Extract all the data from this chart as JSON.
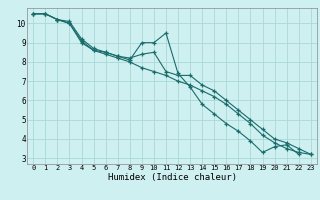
{
  "background_color": "#cff0f0",
  "grid_color": "#aad8d8",
  "line_color": "#1a6b6b",
  "xlabel": "Humidex (Indice chaleur)",
  "xlim": [
    -0.5,
    23.5
  ],
  "ylim": [
    2.7,
    10.8
  ],
  "yticks": [
    3,
    4,
    5,
    6,
    7,
    8,
    9,
    10
  ],
  "xticks": [
    0,
    1,
    2,
    3,
    4,
    5,
    6,
    7,
    8,
    9,
    10,
    11,
    12,
    13,
    14,
    15,
    16,
    17,
    18,
    19,
    20,
    21,
    22,
    23
  ],
  "series": [
    [
      10.5,
      10.5,
      10.2,
      10.1,
      9.2,
      8.7,
      8.5,
      8.3,
      8.1,
      9.0,
      9.0,
      9.5,
      7.4,
      6.7,
      5.8,
      5.3,
      4.8,
      4.4,
      3.9,
      3.3,
      3.6,
      3.7,
      3.2
    ],
    [
      10.5,
      10.5,
      10.2,
      10.0,
      9.1,
      8.6,
      8.5,
      8.3,
      8.2,
      8.4,
      8.5,
      7.5,
      7.3,
      7.3,
      6.8,
      6.5,
      6.0,
      5.5,
      5.0,
      4.5,
      4.0,
      3.8,
      3.5,
      3.2
    ],
    [
      10.5,
      10.5,
      10.2,
      10.0,
      9.0,
      8.6,
      8.4,
      8.2,
      8.0,
      7.7,
      7.5,
      7.3,
      7.0,
      6.8,
      6.5,
      6.2,
      5.8,
      5.3,
      4.8,
      4.2,
      3.8,
      3.5,
      3.3,
      3.2
    ]
  ],
  "series_x": [
    [
      0,
      1,
      2,
      3,
      4,
      5,
      6,
      7,
      8,
      9,
      10,
      11,
      12,
      13,
      14,
      15,
      16,
      17,
      18,
      19,
      20,
      21,
      22
    ],
    [
      0,
      1,
      2,
      3,
      4,
      5,
      6,
      7,
      8,
      9,
      10,
      11,
      12,
      13,
      14,
      15,
      16,
      17,
      18,
      19,
      20,
      21,
      22,
      23
    ],
    [
      0,
      1,
      2,
      3,
      4,
      5,
      6,
      7,
      8,
      9,
      10,
      11,
      12,
      13,
      14,
      15,
      16,
      17,
      18,
      19,
      20,
      21,
      22,
      23
    ]
  ]
}
